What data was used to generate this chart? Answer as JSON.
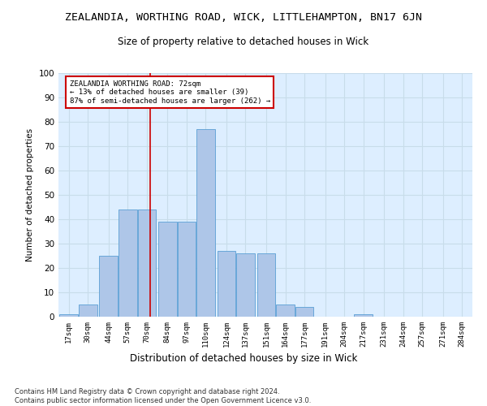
{
  "title": "ZEALANDIA, WORTHING ROAD, WICK, LITTLEHAMPTON, BN17 6JN",
  "subtitle": "Size of property relative to detached houses in Wick",
  "xlabel": "Distribution of detached houses by size in Wick",
  "ylabel": "Number of detached properties",
  "bar_color": "#aec6e8",
  "bar_edge_color": "#5a9fd4",
  "bins": [
    17,
    30,
    44,
    57,
    70,
    84,
    97,
    110,
    124,
    137,
    151,
    164,
    177,
    191,
    204,
    217,
    231,
    244,
    257,
    271,
    284
  ],
  "counts": [
    1,
    5,
    25,
    44,
    44,
    39,
    39,
    77,
    27,
    26,
    26,
    5,
    4,
    0,
    0,
    1,
    0,
    0,
    0,
    0
  ],
  "red_line_x": 72,
  "annotation_line1": "ZEALANDIA WORTHING ROAD: 72sqm",
  "annotation_line2": "← 13% of detached houses are smaller (39)",
  "annotation_line3": "87% of semi-detached houses are larger (262) →",
  "annotation_box_color": "#ffffff",
  "annotation_box_edge_color": "#cc0000",
  "red_line_color": "#cc0000",
  "ylim": [
    0,
    100
  ],
  "yticks": [
    0,
    10,
    20,
    30,
    40,
    50,
    60,
    70,
    80,
    90,
    100
  ],
  "grid_color": "#c8dcea",
  "background_color": "#ddeeff",
  "footer_line1": "Contains HM Land Registry data © Crown copyright and database right 2024.",
  "footer_line2": "Contains public sector information licensed under the Open Government Licence v3.0."
}
